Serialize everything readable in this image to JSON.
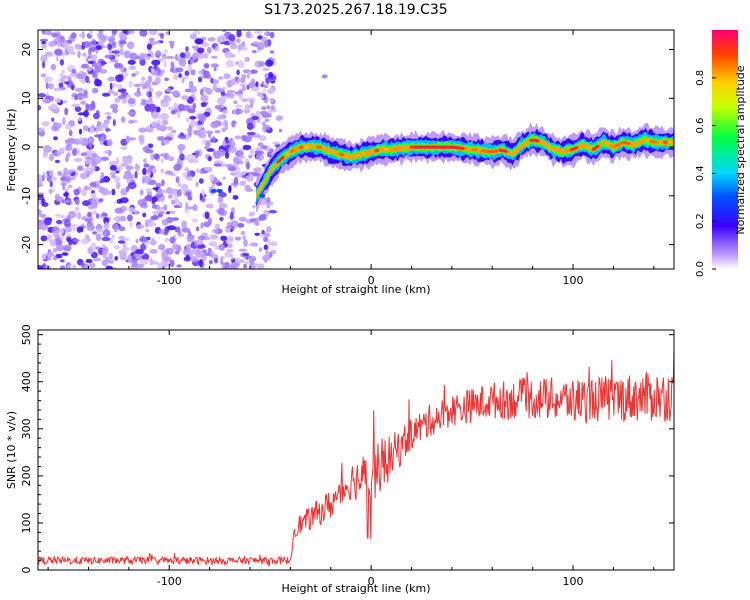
{
  "title": "S173.2025.267.18.19.C35",
  "chart_data": [
    {
      "type": "heatmap",
      "xlabel": "Height of straight line (km)",
      "ylabel": "Frequency (Hz)",
      "xlim": [
        -165,
        150
      ],
      "ylim": [
        -25,
        24
      ],
      "xticks": [
        -100,
        0,
        100
      ],
      "yticks": [
        -20,
        -10,
        0,
        10,
        20
      ],
      "colorbar": {
        "label": "Normalized spectral amplitude",
        "range": [
          0,
          1
        ],
        "ticks": [
          "0.0",
          "0.2",
          "0.4",
          "0.6",
          "0.8"
        ]
      },
      "noise_region_x": [
        -165,
        -48
      ],
      "trace_freq_hz": [
        [
          -57,
          -10
        ],
        [
          -54,
          -8
        ],
        [
          -50,
          -5
        ],
        [
          -45,
          -2.5
        ],
        [
          -40,
          -1
        ],
        [
          -35,
          0
        ],
        [
          -30,
          0
        ],
        [
          -25,
          0
        ],
        [
          -20,
          -1
        ],
        [
          -15,
          -1.5
        ],
        [
          -10,
          -2
        ],
        [
          -5,
          -1.5
        ],
        [
          0,
          -1
        ],
        [
          5,
          -0.5
        ],
        [
          10,
          -0.5
        ],
        [
          20,
          0
        ],
        [
          30,
          0
        ],
        [
          40,
          0
        ],
        [
          50,
          -0.5
        ],
        [
          60,
          -1
        ],
        [
          65,
          -0.5
        ],
        [
          70,
          -1.5
        ],
        [
          75,
          0.5
        ],
        [
          80,
          1.5
        ],
        [
          85,
          1
        ],
        [
          90,
          -0.5
        ],
        [
          95,
          -1
        ],
        [
          100,
          -0.5
        ],
        [
          105,
          0.5
        ],
        [
          110,
          -0.5
        ],
        [
          115,
          1
        ],
        [
          120,
          0
        ],
        [
          125,
          1
        ],
        [
          130,
          0.5
        ],
        [
          135,
          1.5
        ],
        [
          140,
          1
        ],
        [
          150,
          1
        ]
      ],
      "trace_peak_amplitude": 0.95
    },
    {
      "type": "line",
      "xlabel": "Height of straight line (km)",
      "ylabel": "SNR (10 * v/v)",
      "xlim": [
        -165,
        150
      ],
      "ylim": [
        0,
        510
      ],
      "xticks": [
        -100,
        0,
        100
      ],
      "yticks": [
        0,
        100,
        200,
        300,
        400,
        500
      ],
      "color": "#ee3333",
      "envelope_mean": [
        [
          -165,
          20
        ],
        [
          -40,
          20
        ],
        [
          -38,
          90
        ],
        [
          -30,
          110
        ],
        [
          -20,
          140
        ],
        [
          -10,
          190
        ],
        [
          0,
          200
        ],
        [
          10,
          240
        ],
        [
          20,
          290
        ],
        [
          30,
          320
        ],
        [
          40,
          340
        ],
        [
          50,
          350
        ],
        [
          60,
          360
        ],
        [
          80,
          365
        ],
        [
          100,
          360
        ],
        [
          120,
          365
        ],
        [
          150,
          370
        ]
      ],
      "noise_amplitude": [
        [
          -165,
          8
        ],
        [
          -40,
          8
        ],
        [
          -38,
          20
        ],
        [
          -10,
          40
        ],
        [
          0,
          60
        ],
        [
          20,
          35
        ],
        [
          40,
          35
        ],
        [
          80,
          45
        ],
        [
          150,
          55
        ]
      ]
    }
  ]
}
